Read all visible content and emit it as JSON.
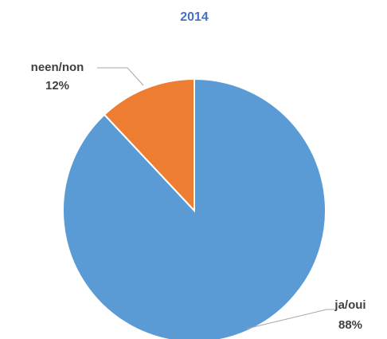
{
  "chart_data": {
    "type": "pie",
    "title": "2014",
    "categories": [
      "ja/oui",
      "neen/non"
    ],
    "values": [
      88,
      12
    ],
    "value_labels": [
      "88%",
      "12%"
    ],
    "colors": [
      "#5b9bd5",
      "#ed7d31"
    ]
  }
}
